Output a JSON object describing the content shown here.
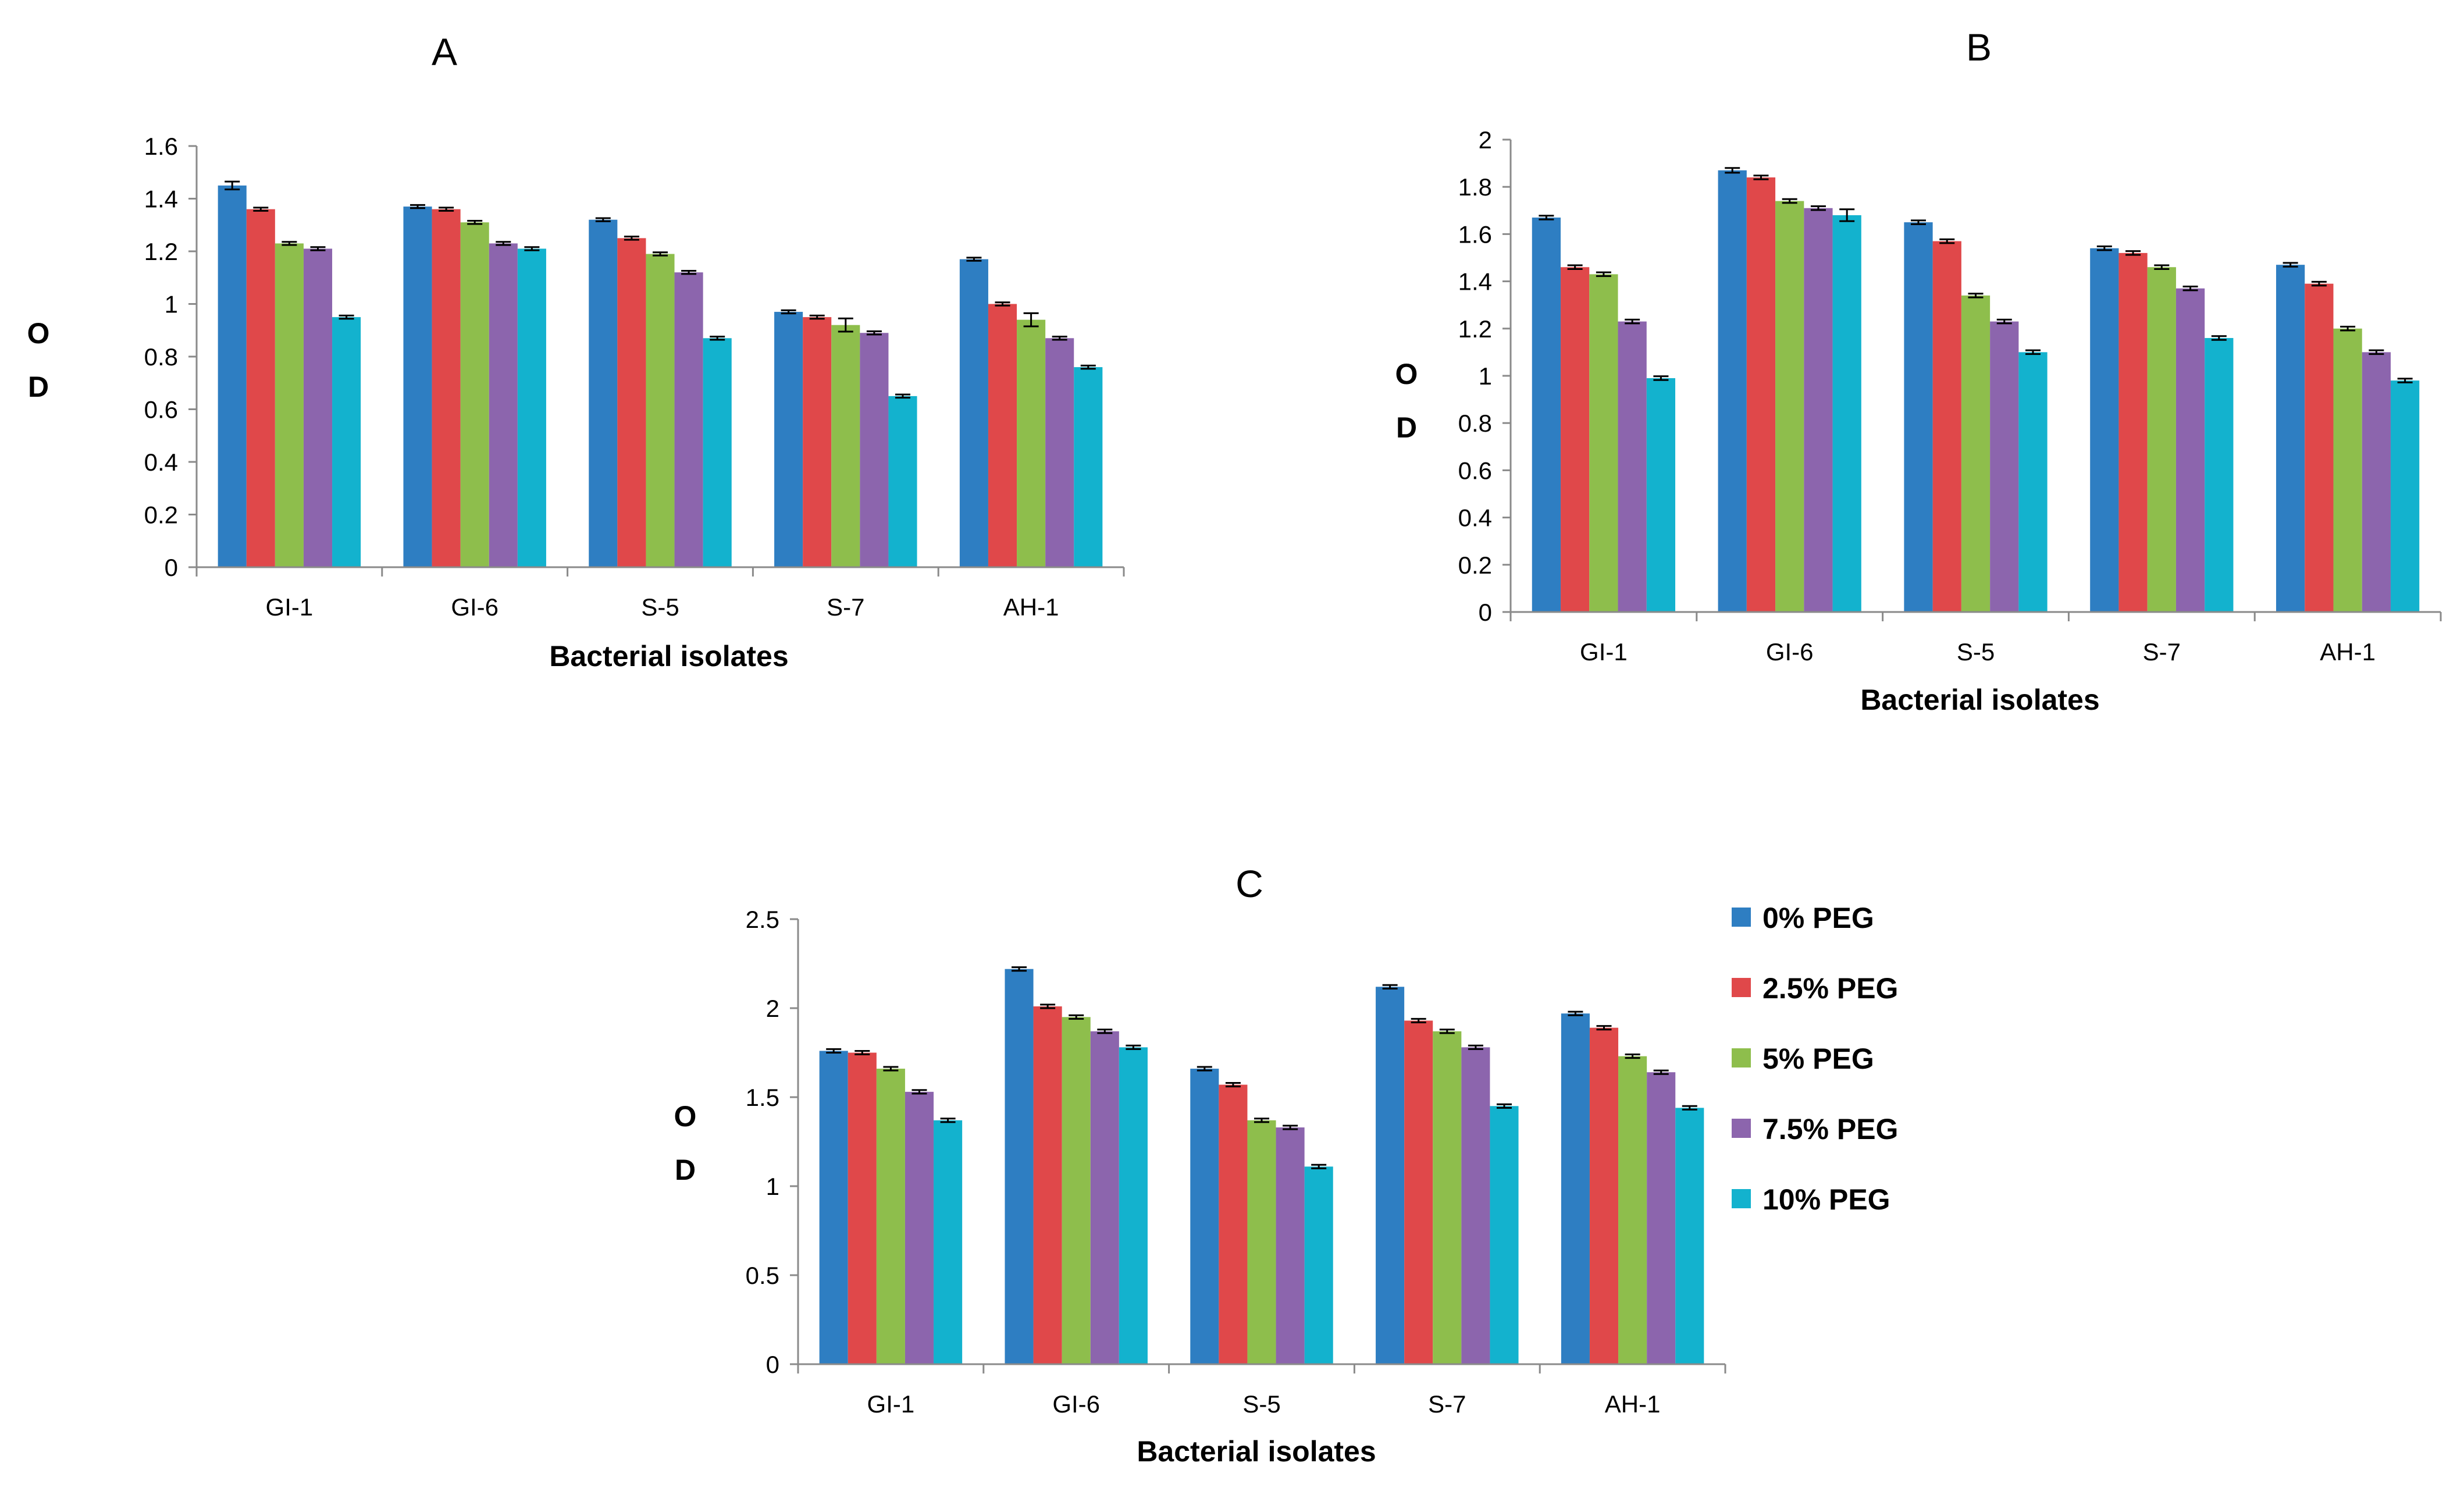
{
  "legend": {
    "placement": "right of panel C",
    "items": [
      "0% PEG",
      "2.5% PEG",
      "5% PEG",
      "7.5% PEG",
      "10% PEG"
    ],
    "colors": [
      "#2E7EC2",
      "#E0484A",
      "#8EBE4C",
      "#8C65AD",
      "#13B2CE"
    ]
  },
  "chart_data": [
    {
      "type": "bar",
      "title": "A",
      "xlabel": "Bacterial isolates",
      "ylabel": "OD",
      "ylabel_lines": [
        "O",
        "D"
      ],
      "categories": [
        "GI-1",
        "GI-6",
        "S-5",
        "S-7",
        "AH-1"
      ],
      "ylim": [
        0,
        1.6
      ],
      "yticks": [
        "0",
        "0.2",
        "0.4",
        "0.6",
        "0.8",
        "1",
        "1.2",
        "1.4",
        "1.6"
      ],
      "grid": false,
      "error_bars": true,
      "series": [
        {
          "name": "0% PEG",
          "values": [
            1.45,
            1.37,
            1.32,
            0.97,
            1.17
          ],
          "errors": [
            0.015,
            0.006,
            0.006,
            0.006,
            0.006
          ]
        },
        {
          "name": "2.5% PEG",
          "values": [
            1.36,
            1.36,
            1.25,
            0.95,
            1.0
          ],
          "errors": [
            0.006,
            0.006,
            0.006,
            0.006,
            0.006
          ]
        },
        {
          "name": "5% PEG",
          "values": [
            1.23,
            1.31,
            1.19,
            0.92,
            0.94
          ],
          "errors": [
            0.006,
            0.006,
            0.006,
            0.025,
            0.025
          ]
        },
        {
          "name": "7.5% PEG",
          "values": [
            1.21,
            1.23,
            1.12,
            0.89,
            0.87
          ],
          "errors": [
            0.006,
            0.006,
            0.006,
            0.006,
            0.006
          ]
        },
        {
          "name": "10% PEG",
          "values": [
            0.95,
            1.21,
            0.87,
            0.65,
            0.76
          ],
          "errors": [
            0.006,
            0.006,
            0.006,
            0.006,
            0.006
          ]
        }
      ]
    },
    {
      "type": "bar",
      "title": "B",
      "xlabel": "Bacterial isolates",
      "ylabel": "OD",
      "ylabel_lines": [
        "O",
        "D"
      ],
      "categories": [
        "GI-1",
        "GI-6",
        "S-5",
        "S-7",
        "AH-1"
      ],
      "ylim": [
        0,
        2
      ],
      "yticks": [
        "0",
        "0.2",
        "0.4",
        "0.6",
        "0.8",
        "1",
        "1.2",
        "1.4",
        "1.6",
        "1.8",
        "2"
      ],
      "grid": false,
      "error_bars": true,
      "series": [
        {
          "name": "0% PEG",
          "values": [
            1.67,
            1.87,
            1.65,
            1.54,
            1.47
          ],
          "errors": [
            0.008,
            0.01,
            0.008,
            0.008,
            0.008
          ]
        },
        {
          "name": "2.5% PEG",
          "values": [
            1.46,
            1.84,
            1.57,
            1.52,
            1.39
          ],
          "errors": [
            0.008,
            0.008,
            0.008,
            0.008,
            0.008
          ]
        },
        {
          "name": "5% PEG",
          "values": [
            1.43,
            1.74,
            1.34,
            1.46,
            1.2
          ],
          "errors": [
            0.008,
            0.008,
            0.008,
            0.008,
            0.008
          ]
        },
        {
          "name": "7.5% PEG",
          "values": [
            1.23,
            1.71,
            1.23,
            1.37,
            1.1
          ],
          "errors": [
            0.008,
            0.008,
            0.008,
            0.008,
            0.008
          ]
        },
        {
          "name": "10% PEG",
          "values": [
            0.99,
            1.68,
            1.1,
            1.16,
            0.98
          ],
          "errors": [
            0.008,
            0.025,
            0.008,
            0.008,
            0.008
          ]
        }
      ]
    },
    {
      "type": "bar",
      "title": "C",
      "xlabel": "Bacterial isolates",
      "ylabel": "OD",
      "ylabel_lines": [
        "O",
        "D"
      ],
      "categories": [
        "GI-1",
        "GI-6",
        "S-5",
        "S-7",
        "AH-1"
      ],
      "ylim": [
        0,
        2.5
      ],
      "yticks": [
        "0",
        "0.5",
        "1",
        "1.5",
        "2",
        "2.5"
      ],
      "grid": false,
      "error_bars": true,
      "series": [
        {
          "name": "0% PEG",
          "values": [
            1.76,
            2.22,
            1.66,
            2.12,
            1.97
          ],
          "errors": [
            0.01,
            0.01,
            0.01,
            0.01,
            0.01
          ]
        },
        {
          "name": "2.5% PEG",
          "values": [
            1.75,
            2.01,
            1.57,
            1.93,
            1.89
          ],
          "errors": [
            0.01,
            0.01,
            0.01,
            0.01,
            0.01
          ]
        },
        {
          "name": "5% PEG",
          "values": [
            1.66,
            1.95,
            1.37,
            1.87,
            1.73
          ],
          "errors": [
            0.01,
            0.01,
            0.01,
            0.01,
            0.01
          ]
        },
        {
          "name": "7.5% PEG",
          "values": [
            1.53,
            1.87,
            1.33,
            1.78,
            1.64
          ],
          "errors": [
            0.01,
            0.01,
            0.01,
            0.01,
            0.01
          ]
        },
        {
          "name": "10% PEG",
          "values": [
            1.37,
            1.78,
            1.11,
            1.45,
            1.44
          ],
          "errors": [
            0.01,
            0.01,
            0.01,
            0.01,
            0.01
          ]
        }
      ]
    }
  ]
}
